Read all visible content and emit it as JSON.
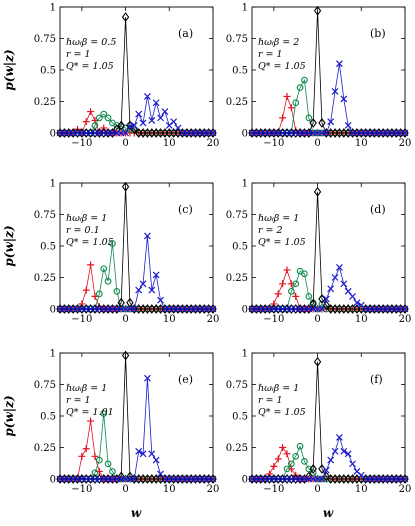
{
  "figure": {
    "ylabel": "p(w|z)",
    "xlabel": "w"
  },
  "series_colors": {
    "red": "#e3121f",
    "green": "#0d8a4c",
    "black": "#000000",
    "blue": "#1c1ccb"
  },
  "chart_data": [
    {
      "type": "line",
      "panel_label": "(a)",
      "annotations": [
        "ℏωᵢβ = 0.5",
        "r = 1",
        "Q* = 1.05"
      ],
      "xlim": [
        -15,
        20
      ],
      "ylim": [
        0,
        1
      ],
      "xticks": [
        -10,
        0,
        10,
        20
      ],
      "yticks": [
        0,
        0.25,
        0.5,
        0.75,
        1
      ],
      "xtick_labels": [
        "−10",
        "0",
        "10",
        "20"
      ],
      "ytick_labels": [
        "0",
        "0.25",
        "0.5",
        "0.75",
        "1"
      ],
      "grid": false,
      "series": [
        {
          "color": "red",
          "marker": "plus",
          "points": [
            [
              -11,
              0.03
            ],
            [
              -9,
              0.09
            ],
            [
              -8,
              0.17
            ],
            [
              -7,
              0.1
            ],
            [
              -5,
              0.04
            ]
          ]
        },
        {
          "color": "green",
          "marker": "circle",
          "points": [
            [
              -7,
              0.06
            ],
            [
              -6,
              0.12
            ],
            [
              -5,
              0.15
            ],
            [
              -4,
              0.12
            ],
            [
              -3,
              0.08
            ],
            [
              -2,
              0.06
            ],
            [
              -1,
              0.05
            ],
            [
              0,
              0.04
            ],
            [
              1,
              0.03
            ],
            [
              2,
              0.02
            ]
          ]
        },
        {
          "color": "black",
          "marker": "diamond",
          "points": [
            [
              -2,
              0.03
            ],
            [
              -1,
              0.06
            ],
            [
              0,
              0.92
            ],
            [
              1,
              0.06
            ],
            [
              2,
              0.03
            ]
          ]
        },
        {
          "color": "blue",
          "marker": "cross",
          "points": [
            [
              1,
              0.05
            ],
            [
              2,
              0.06
            ],
            [
              3,
              0.15
            ],
            [
              4,
              0.08
            ],
            [
              5,
              0.29
            ],
            [
              6,
              0.1
            ],
            [
              7,
              0.24
            ],
            [
              8,
              0.12
            ],
            [
              9,
              0.17
            ],
            [
              10,
              0.06
            ],
            [
              11,
              0.09
            ],
            [
              12,
              0.04
            ]
          ]
        }
      ]
    },
    {
      "type": "line",
      "panel_label": "(b)",
      "annotations": [
        "ℏωᵢβ = 2",
        "r = 1",
        "Q* = 1.05"
      ],
      "xlim": [
        -15,
        20
      ],
      "ylim": [
        0,
        1
      ],
      "xticks": [
        -10,
        0,
        10,
        20
      ],
      "yticks": [
        0,
        0.25,
        0.5,
        0.75,
        1
      ],
      "xtick_labels": [
        "−10",
        "0",
        "10",
        "20"
      ],
      "ytick_labels": [
        "0",
        "0.25",
        "0.5",
        "0.75",
        "1"
      ],
      "grid": false,
      "series": [
        {
          "color": "red",
          "marker": "plus",
          "points": [
            [
              -8,
              0.12
            ],
            [
              -7,
              0.29
            ],
            [
              -6,
              0.2
            ],
            [
              -5,
              0.02
            ]
          ]
        },
        {
          "color": "green",
          "marker": "circle",
          "points": [
            [
              -5,
              0.24
            ],
            [
              -4,
              0.36
            ],
            [
              -3,
              0.42
            ],
            [
              -2,
              0.12
            ]
          ]
        },
        {
          "color": "black",
          "marker": "diamond",
          "points": [
            [
              -1,
              0.08
            ],
            [
              0,
              0.97
            ],
            [
              1,
              0.08
            ]
          ]
        },
        {
          "color": "blue",
          "marker": "cross",
          "points": [
            [
              3,
              0.09
            ],
            [
              4,
              0.33
            ],
            [
              5,
              0.55
            ],
            [
              6,
              0.27
            ],
            [
              7,
              0.06
            ]
          ]
        }
      ]
    },
    {
      "type": "line",
      "panel_label": "(c)",
      "annotations": [
        "ℏωᵢβ = 1",
        "r = 0.1",
        "Q* = 1.05"
      ],
      "xlim": [
        -15,
        20
      ],
      "ylim": [
        0,
        1
      ],
      "xticks": [
        -10,
        0,
        10,
        20
      ],
      "yticks": [
        0,
        0.25,
        0.5,
        0.75,
        1
      ],
      "xtick_labels": [
        "−10",
        "0",
        "10",
        "20"
      ],
      "ytick_labels": [
        "0",
        "0.25",
        "0.5",
        "0.75",
        "1"
      ],
      "grid": false,
      "series": [
        {
          "color": "red",
          "marker": "plus",
          "points": [
            [
              -10,
              0.04
            ],
            [
              -9,
              0.15
            ],
            [
              -8,
              0.35
            ],
            [
              -7,
              0.1
            ],
            [
              -6,
              0.02
            ]
          ]
        },
        {
          "color": "green",
          "marker": "circle",
          "points": [
            [
              -6,
              0.12
            ],
            [
              -5,
              0.32
            ],
            [
              -4,
              0.22
            ],
            [
              -3,
              0.52
            ],
            [
              -2,
              0.14
            ]
          ]
        },
        {
          "color": "black",
          "marker": "diamond",
          "points": [
            [
              -1,
              0.05
            ],
            [
              0,
              0.97
            ],
            [
              1,
              0.05
            ]
          ]
        },
        {
          "color": "blue",
          "marker": "cross",
          "points": [
            [
              3,
              0.15
            ],
            [
              4,
              0.2
            ],
            [
              5,
              0.58
            ],
            [
              6,
              0.15
            ],
            [
              7,
              0.27
            ],
            [
              8,
              0.07
            ]
          ]
        }
      ]
    },
    {
      "type": "line",
      "panel_label": "(d)",
      "annotations": [
        "ℏωᵢβ = 1",
        "r = 2",
        "Q* = 1.05"
      ],
      "xlim": [
        -15,
        20
      ],
      "ylim": [
        0,
        1
      ],
      "xticks": [
        -10,
        0,
        10,
        20
      ],
      "yticks": [
        0,
        0.25,
        0.5,
        0.75,
        1
      ],
      "xtick_labels": [
        "−10",
        "0",
        "10",
        "20"
      ],
      "ytick_labels": [
        "0",
        "0.25",
        "0.5",
        "0.75",
        "1"
      ],
      "grid": false,
      "series": [
        {
          "color": "red",
          "marker": "plus",
          "points": [
            [
              -10,
              0.04
            ],
            [
              -9,
              0.12
            ],
            [
              -8,
              0.2
            ],
            [
              -7,
              0.31
            ],
            [
              -6,
              0.2
            ],
            [
              -5,
              0.1
            ]
          ]
        },
        {
          "color": "green",
          "marker": "circle",
          "points": [
            [
              -6,
              0.14
            ],
            [
              -5,
              0.2
            ],
            [
              -4,
              0.3
            ],
            [
              -3,
              0.28
            ],
            [
              -2,
              0.1
            ],
            [
              -1,
              0.05
            ],
            [
              1,
              0.04
            ]
          ]
        },
        {
          "color": "black",
          "marker": "diamond",
          "points": [
            [
              -1,
              0.04
            ],
            [
              0,
              0.93
            ],
            [
              1,
              0.08
            ],
            [
              2,
              0.03
            ]
          ]
        },
        {
          "color": "blue",
          "marker": "cross",
          "points": [
            [
              2,
              0.08
            ],
            [
              3,
              0.16
            ],
            [
              4,
              0.25
            ],
            [
              5,
              0.33
            ],
            [
              6,
              0.2
            ],
            [
              7,
              0.14
            ],
            [
              8,
              0.1
            ],
            [
              9,
              0.05
            ],
            [
              10,
              0.03
            ]
          ]
        }
      ]
    },
    {
      "type": "line",
      "panel_label": "(e)",
      "annotations": [
        "ℏωᵢβ = 1",
        "r = 1",
        "Q* = 1.01"
      ],
      "xlim": [
        -15,
        20
      ],
      "ylim": [
        0,
        1
      ],
      "xticks": [
        -10,
        0,
        10,
        20
      ],
      "yticks": [
        0,
        0.25,
        0.5,
        0.75,
        1
      ],
      "xtick_labels": [
        "−10",
        "0",
        "10",
        "20"
      ],
      "ytick_labels": [
        "0",
        "0.25",
        "0.5",
        "0.75",
        "1"
      ],
      "grid": false,
      "series": [
        {
          "color": "red",
          "marker": "plus",
          "points": [
            [
              -10,
              0.18
            ],
            [
              -9,
              0.24
            ],
            [
              -8,
              0.46
            ],
            [
              -7,
              0.18
            ],
            [
              -6,
              0.06
            ]
          ]
        },
        {
          "color": "green",
          "marker": "circle",
          "points": [
            [
              -7,
              0.05
            ],
            [
              -6,
              0.15
            ],
            [
              -5,
              0.52
            ],
            [
              -4,
              0.12
            ],
            [
              -3,
              0.06
            ]
          ]
        },
        {
          "color": "black",
          "marker": "diamond",
          "points": [
            [
              -1,
              0.02
            ],
            [
              0,
              0.98
            ],
            [
              1,
              0.02
            ]
          ]
        },
        {
          "color": "blue",
          "marker": "cross",
          "points": [
            [
              3,
              0.22
            ],
            [
              4,
              0.2
            ],
            [
              5,
              0.8
            ],
            [
              6,
              0.2
            ],
            [
              7,
              0.15
            ],
            [
              8,
              0.04
            ]
          ]
        }
      ]
    },
    {
      "type": "line",
      "panel_label": "(f)",
      "annotations": [
        "ℏωᵢβ = 1",
        "r = 1",
        "Q* = 1.05"
      ],
      "xlim": [
        -15,
        20
      ],
      "ylim": [
        0,
        1
      ],
      "xticks": [
        -10,
        0,
        10,
        20
      ],
      "yticks": [
        0,
        0.25,
        0.5,
        0.75,
        1
      ],
      "xtick_labels": [
        "−10",
        "0",
        "10",
        "20"
      ],
      "ytick_labels": [
        "0",
        "0.25",
        "0.5",
        "0.75",
        "1"
      ],
      "grid": false,
      "series": [
        {
          "color": "red",
          "marker": "plus",
          "points": [
            [
              -11,
              0.04
            ],
            [
              -10,
              0.1
            ],
            [
              -9,
              0.16
            ],
            [
              -8,
              0.25
            ],
            [
              -7,
              0.2
            ],
            [
              -6,
              0.08
            ],
            [
              -5,
              0.03
            ]
          ]
        },
        {
          "color": "green",
          "marker": "circle",
          "points": [
            [
              -7,
              0.08
            ],
            [
              -6,
              0.12
            ],
            [
              -5,
              0.18
            ],
            [
              -4,
              0.26
            ],
            [
              -3,
              0.14
            ],
            [
              -2,
              0.08
            ],
            [
              -1,
              0.05
            ]
          ]
        },
        {
          "color": "black",
          "marker": "diamond",
          "points": [
            [
              -2,
              0.02
            ],
            [
              -1,
              0.08
            ],
            [
              0,
              0.93
            ],
            [
              1,
              0.08
            ],
            [
              2,
              0.02
            ]
          ]
        },
        {
          "color": "blue",
          "marker": "cross",
          "points": [
            [
              2,
              0.07
            ],
            [
              3,
              0.15
            ],
            [
              4,
              0.22
            ],
            [
              5,
              0.33
            ],
            [
              6,
              0.22
            ],
            [
              7,
              0.2
            ],
            [
              8,
              0.12
            ],
            [
              9,
              0.06
            ],
            [
              10,
              0.03
            ]
          ]
        }
      ]
    }
  ]
}
